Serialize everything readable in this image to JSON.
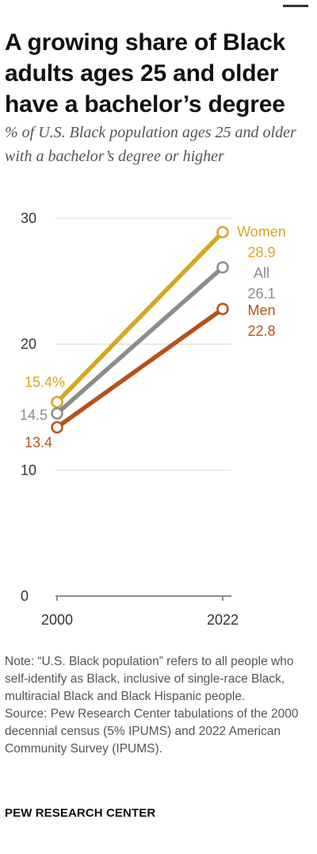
{
  "title": "A growing share of Black adults ages 25 and older have a bachelor’s degree",
  "subtitle": "% of U.S. Black population ages 25 and older with a bachelor’s degree or higher",
  "note": "Note: “U.S. Black population” refers to all people who self-identify as Black, inclusive of single-race Black, multiracial Black and Black Hispanic people.",
  "source": "Source: Pew Research Center tabulations of the 2000 decennial census (5% IPUMS) and 2022 American Community Survey (IPUMS).",
  "logo": "PEW RESEARCH CENTER",
  "colors": {
    "women": "#d4a81f",
    "all": "#8c8c8c",
    "men": "#b5521b",
    "grid": "#d9d9d9",
    "axis": "#8c8c8c"
  },
  "chart_data": {
    "type": "line",
    "x": [
      "2000",
      "2022"
    ],
    "ylim": [
      0,
      30
    ],
    "yticks": [
      "0",
      "10",
      "20",
      "30"
    ],
    "grid": true,
    "series": [
      {
        "name": "Women",
        "values": [
          15.4,
          28.9
        ],
        "start_label": "15.4%",
        "end_label": "28.9",
        "color": "#d4a81f"
      },
      {
        "name": "All",
        "values": [
          14.5,
          26.1
        ],
        "start_label": "14.5",
        "end_label": "26.1",
        "color": "#8c8c8c"
      },
      {
        "name": "Men",
        "values": [
          13.4,
          22.8
        ],
        "start_label": "13.4",
        "end_label": "22.8",
        "color": "#b5521b"
      }
    ]
  }
}
